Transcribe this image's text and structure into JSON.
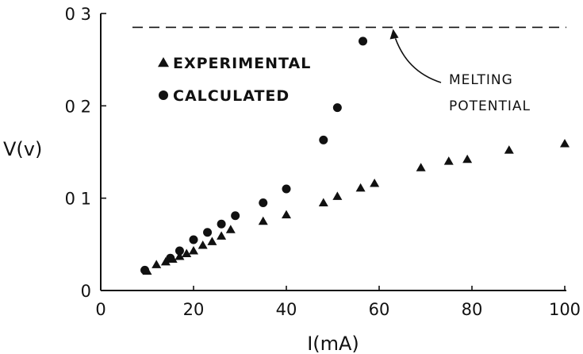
{
  "chart_data": {
    "type": "scatter",
    "title": "",
    "xlabel": "I(mA)",
    "ylabel": "V(v)",
    "xlim": [
      0,
      100
    ],
    "ylim": [
      0,
      0.3
    ],
    "x_ticks": [
      0,
      20,
      40,
      60,
      80,
      100
    ],
    "x_tick_labels": [
      "0",
      "20",
      "40",
      "60",
      "80",
      "100"
    ],
    "y_ticks": [
      0,
      0.1,
      0.2,
      0.3
    ],
    "y_tick_labels": [
      "0",
      "0 1",
      "0 2",
      "0 3"
    ],
    "grid": false,
    "legend_position": "top-left",
    "series": [
      {
        "name": "EXPERIMENTAL",
        "marker": "triangle",
        "x": [
          10,
          12,
          14,
          15.5,
          17,
          18.5,
          20,
          22,
          24,
          26,
          28,
          35,
          40,
          48,
          51,
          56,
          59,
          69,
          75,
          79,
          88,
          100
        ],
        "y": [
          0.021,
          0.028,
          0.031,
          0.034,
          0.037,
          0.04,
          0.043,
          0.049,
          0.053,
          0.059,
          0.066,
          0.075,
          0.082,
          0.095,
          0.102,
          0.111,
          0.116,
          0.133,
          0.14,
          0.142,
          0.152,
          0.159
        ]
      },
      {
        "name": "CALCULATED",
        "marker": "circle",
        "x": [
          9.5,
          15,
          17,
          20,
          23,
          26,
          29,
          35,
          40,
          48,
          51,
          56.5
        ],
        "y": [
          0.022,
          0.035,
          0.043,
          0.055,
          0.063,
          0.072,
          0.081,
          0.095,
          0.11,
          0.163,
          0.198,
          0.27
        ]
      }
    ],
    "reference_line": {
      "y": 0.285,
      "style": "dashed"
    },
    "annotation": {
      "lines": [
        "MELTING",
        "POTENTIAL"
      ],
      "points_to": {
        "x": 63,
        "y": 0.285
      }
    },
    "colors": {
      "ink": "#111111",
      "background": "#ffffff"
    }
  }
}
